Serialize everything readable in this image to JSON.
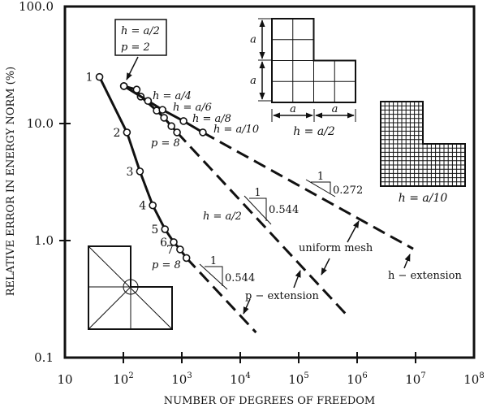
{
  "chart_data": {
    "type": "line",
    "xlabel": "NUMBER OF DEGREES OF FREEDOM",
    "ylabel": "RELATIVE ERROR IN ENERGY NORM (%)",
    "xscale": "log",
    "yscale": "log",
    "xlim": [
      10,
      100000000
    ],
    "ylim": [
      0.1,
      100
    ],
    "x_ticks": [
      {
        "value": 10,
        "base": "10",
        "exp": ""
      },
      {
        "value": 100,
        "base": "10",
        "exp": "2"
      },
      {
        "value": 1000,
        "base": "10",
        "exp": "3"
      },
      {
        "value": 10000,
        "base": "10",
        "exp": "4"
      },
      {
        "value": 100000,
        "base": "10",
        "exp": "5"
      },
      {
        "value": 1000000,
        "base": "10",
        "exp": "6"
      },
      {
        "value": 10000000,
        "base": "10",
        "exp": "7"
      },
      {
        "value": 100000000,
        "base": "10",
        "exp": "8"
      }
    ],
    "y_ticks": [
      {
        "value": 100,
        "label": "100.0"
      },
      {
        "value": 10,
        "label": "10.0"
      },
      {
        "value": 1,
        "label": "1.0"
      },
      {
        "value": 0.1,
        "label": "0.1"
      }
    ],
    "grid": false,
    "series": [
      {
        "id": "p-extension-graded",
        "points": [
          [
            39,
            25
          ],
          [
            115,
            8.4
          ],
          [
            192,
            3.9
          ],
          [
            318,
            2.0
          ],
          [
            515,
            1.25
          ],
          [
            727,
            0.97
          ],
          [
            935,
            0.84
          ],
          [
            1200,
            0.71
          ]
        ],
        "point_labels": [
          "1",
          "2",
          "3",
          "4",
          "5",
          "6",
          "7",
          ""
        ],
        "extrapolation": [
          [
            1200,
            0.71
          ],
          [
            18600,
            0.164
          ]
        ]
      },
      {
        "id": "p-extension-uniform-h-a2",
        "points": [
          [
            102,
            20.9
          ],
          [
            169,
            19.5
          ],
          [
            198,
            17.0
          ],
          [
            372,
            12.9
          ],
          [
            497,
            11.2
          ],
          [
            664,
            9.5
          ],
          [
            828,
            8.4
          ]
        ],
        "extrapolation": [
          [
            828,
            8.4
          ],
          [
            670000,
            0.23
          ]
        ]
      },
      {
        "id": "h-extension-p2",
        "points": [
          [
            102,
            20.9
          ],
          [
            264,
            15.6
          ],
          [
            467,
            13.1
          ],
          [
            1070,
            10.5
          ],
          [
            2290,
            8.4
          ]
        ],
        "extrapolation": [
          [
            2290,
            8.4
          ],
          [
            9100000,
            0.85
          ]
        ]
      }
    ],
    "annotations": {
      "box_line1": "h = a/2",
      "box_line2": "p = 2",
      "h_a4": "h = a/4",
      "h_a6": "h = a/6",
      "h_a8": "h = a/8",
      "h_a10": "h = a/10",
      "p8_upper": "p = 8",
      "p8_lower": "p = 8",
      "h_a2": "h = a/2",
      "slope_run": "1",
      "slope_lower": "0.544",
      "slope_middle": "0.544",
      "slope_upper": "0.272",
      "uniform_mesh": "uniform mesh",
      "p_extension": "p − extension",
      "h_extension": "h − extension",
      "mesh_coarse_label": "h = a/2",
      "mesh_fine_label": "h = a/10",
      "dim_a": "a"
    }
  }
}
